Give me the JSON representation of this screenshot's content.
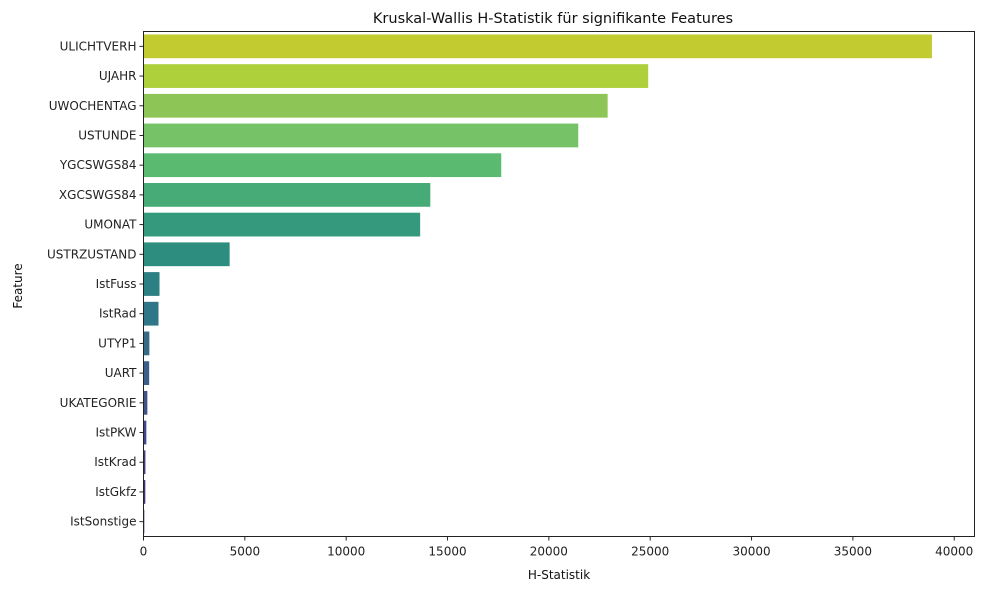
{
  "chart_data": {
    "type": "bar",
    "orientation": "horizontal",
    "title": "Kruskal-Wallis H-Statistik für signifikante Features",
    "xlabel": "H-Statistik",
    "ylabel": "Feature",
    "xlim": [
      0,
      41000
    ],
    "xticks": [
      0,
      5000,
      10000,
      15000,
      20000,
      25000,
      30000,
      35000,
      40000
    ],
    "grid": false,
    "legend": "none",
    "palette": "viridis",
    "categories": [
      "ULICHTVERH",
      "UJAHR",
      "UWOCHENTAG",
      "USTUNDE",
      "YGCSWGS84",
      "XGCSWGS84",
      "UMONAT",
      "USTRZUSTAND",
      "IstFuss",
      "IstRad",
      "UTYP1",
      "UART",
      "UKATEGORIE",
      "IstPKW",
      "IstKrad",
      "IstGkfz",
      "IstSonstige"
    ],
    "values": [
      38900,
      24900,
      22900,
      21450,
      17650,
      14150,
      13650,
      4250,
      790,
      740,
      290,
      280,
      190,
      140,
      95,
      90,
      40
    ],
    "colors": [
      "#c2cb2f",
      "#aed03a",
      "#8ec557",
      "#76c266",
      "#59ba70",
      "#47ab77",
      "#35997d",
      "#2d8d7f",
      "#2c7f83",
      "#2f7686",
      "#366b88",
      "#3b5f8a",
      "#40548a",
      "#424788",
      "#443c85",
      "#46307b",
      "#472672"
    ]
  }
}
